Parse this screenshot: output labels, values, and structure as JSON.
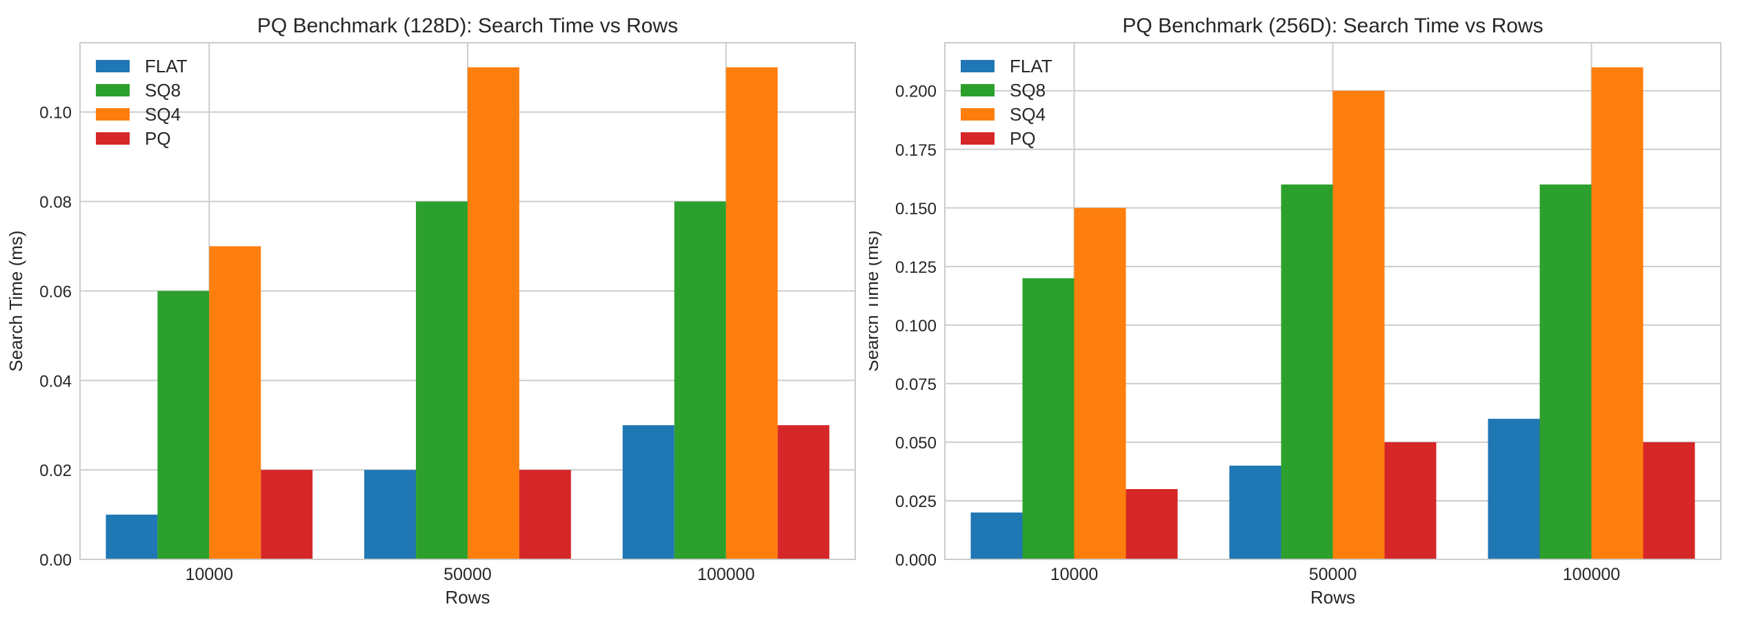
{
  "figure": {
    "background": "#ffffff",
    "grid_color": "#cccccc",
    "text_color": "#262626"
  },
  "chart_data": [
    {
      "type": "bar",
      "title": "PQ Benchmark (128D): Search Time vs Rows",
      "xlabel": "Rows",
      "ylabel": "Search Time (ms)",
      "categories": [
        "10000",
        "50000",
        "100000"
      ],
      "series": [
        {
          "name": "FLAT",
          "color": "#1f77b4",
          "values": [
            0.01,
            0.02,
            0.03
          ]
        },
        {
          "name": "SQ8",
          "color": "#2ca02c",
          "values": [
            0.06,
            0.08,
            0.08
          ]
        },
        {
          "name": "SQ4",
          "color": "#ff7f0e",
          "values": [
            0.07,
            0.11,
            0.11
          ]
        },
        {
          "name": "PQ",
          "color": "#d62728",
          "values": [
            0.02,
            0.02,
            0.03
          ]
        }
      ],
      "ylim": [
        0,
        0.1155
      ],
      "yticks": [
        0.0,
        0.02,
        0.04,
        0.06,
        0.08,
        0.1
      ],
      "ytick_labels": [
        "0.00",
        "0.02",
        "0.04",
        "0.06",
        "0.08",
        "0.10"
      ],
      "grid": true,
      "legend_position": "upper left",
      "legend_entries": [
        "FLAT",
        "SQ8",
        "SQ4",
        "PQ"
      ]
    },
    {
      "type": "bar",
      "title": "PQ Benchmark (256D): Search Time vs Rows",
      "xlabel": "Rows",
      "ylabel": "Search Time (ms)",
      "categories": [
        "10000",
        "50000",
        "100000"
      ],
      "series": [
        {
          "name": "FLAT",
          "color": "#1f77b4",
          "values": [
            0.02,
            0.04,
            0.06
          ]
        },
        {
          "name": "SQ8",
          "color": "#2ca02c",
          "values": [
            0.12,
            0.16,
            0.16
          ]
        },
        {
          "name": "SQ4",
          "color": "#ff7f0e",
          "values": [
            0.15,
            0.2,
            0.21
          ]
        },
        {
          "name": "PQ",
          "color": "#d62728",
          "values": [
            0.03,
            0.05,
            0.05
          ]
        }
      ],
      "ylim": [
        0,
        0.2205
      ],
      "yticks": [
        0.0,
        0.025,
        0.05,
        0.075,
        0.1,
        0.125,
        0.15,
        0.175,
        0.2
      ],
      "ytick_labels": [
        "0.000",
        "0.025",
        "0.050",
        "0.075",
        "0.100",
        "0.125",
        "0.150",
        "0.175",
        "0.200"
      ],
      "grid": true,
      "legend_position": "upper left",
      "legend_entries": [
        "FLAT",
        "SQ8",
        "SQ4",
        "PQ"
      ]
    }
  ]
}
